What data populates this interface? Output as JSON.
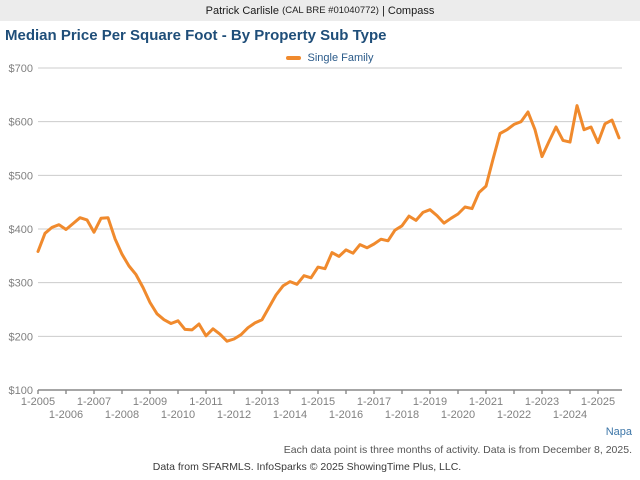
{
  "header": {
    "agent_name": "Patrick Carlisle",
    "license": "(CAL BRE #01040772)",
    "separator": "|",
    "brand": "Compass"
  },
  "title": "Median Price Per Square Foot - By Property Sub Type",
  "legend": {
    "label": "Single Family",
    "swatch_color": "#f08a2d"
  },
  "region_label": "Napa",
  "footnote": "Each data point is three months of activity. Data is from December 8, 2025.",
  "attribution": "Data from SFARMLS. InfoSparks © 2025 ShowingTime Plus, LLC.",
  "colors": {
    "line": "#f08a2d",
    "title": "#1f4e79",
    "axis_labels": "#808080",
    "gridline": "#cccccc",
    "axis_line": "#888888",
    "header_bar": "#ececec",
    "region_text": "#3d76a8"
  },
  "chart_data": {
    "type": "line",
    "title": "Median Price Per Square Foot - By Property Sub Type",
    "ylabel": "",
    "xlabel": "",
    "y_tick_prefix": "$",
    "y_ticks": [
      100,
      200,
      300,
      400,
      500,
      600,
      700
    ],
    "ylim": [
      100,
      700
    ],
    "grid": "horizontal",
    "legend_position": "top-center",
    "x_tick_labels_row1": [
      "1-2005",
      "1-2007",
      "1-2009",
      "1-2011",
      "1-2013",
      "1-2015",
      "1-2017",
      "1-2019",
      "1-2021",
      "1-2023",
      "1-2025"
    ],
    "x_tick_labels_row2": [
      "1-2006",
      "1-2008",
      "1-2010",
      "1-2012",
      "1-2014",
      "1-2016",
      "1-2018",
      "1-2020",
      "1-2022",
      "1-2024"
    ],
    "x_start_label": "1-2005",
    "x_end_label": "10-2025",
    "interval_months": 3,
    "note": "values are quarterly estimates (Jan/Apr/Jul/Oct) read from plot, $ per sq ft",
    "series": [
      {
        "name": "Single Family",
        "color": "#f08a2d",
        "values": [
          358,
          392,
          403,
          408,
          399,
          410,
          421,
          417,
          394,
          420,
          421,
          382,
          353,
          331,
          315,
          291,
          263,
          242,
          231,
          224,
          229,
          213,
          212,
          223,
          201,
          214,
          204,
          191,
          195,
          203,
          216,
          225,
          231,
          254,
          277,
          294,
          302,
          297,
          313,
          309,
          329,
          326,
          356,
          349,
          361,
          355,
          371,
          365,
          372,
          381,
          378,
          398,
          406,
          424,
          416,
          431,
          436,
          425,
          411,
          420,
          428,
          441,
          438,
          468,
          480,
          530,
          578,
          585,
          595,
          600,
          618,
          585,
          535,
          563,
          590,
          565,
          562,
          630,
          585,
          590,
          561,
          596,
          603,
          570
        ]
      }
    ]
  }
}
